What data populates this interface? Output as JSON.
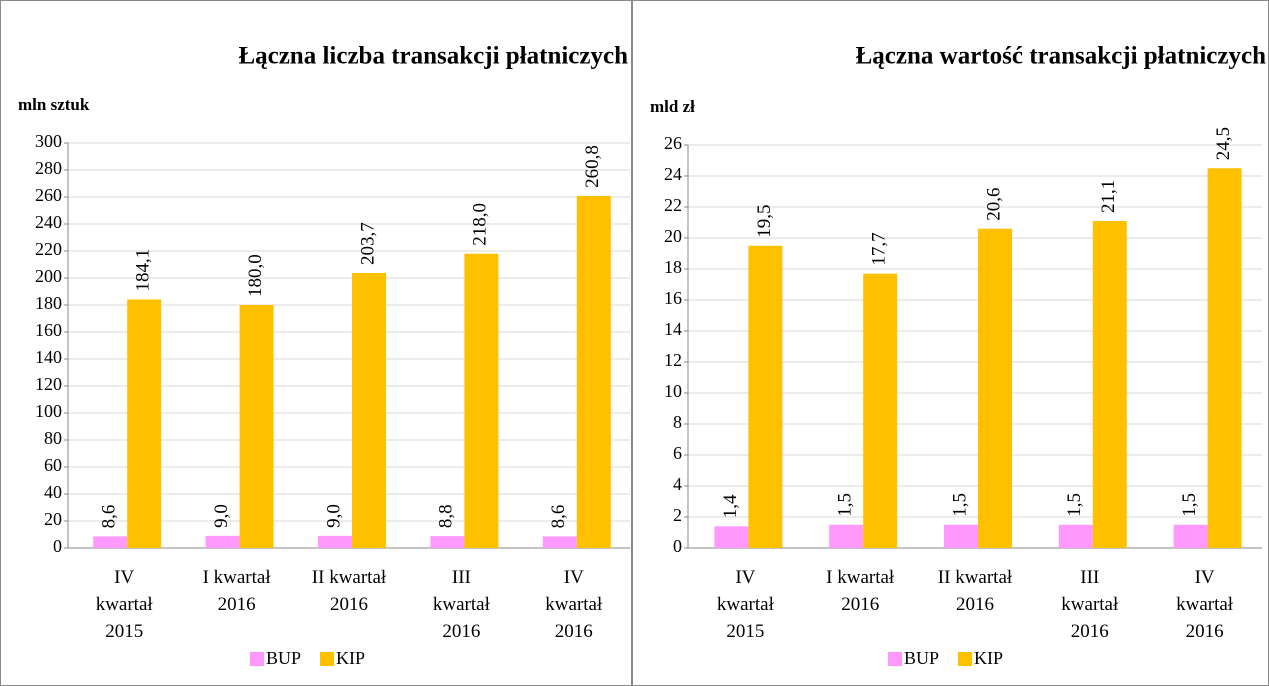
{
  "chart_data": [
    {
      "type": "bar",
      "title": "Łączna liczba transakcji płatniczych",
      "y_label": "mln sztuk",
      "categories": [
        "IV\nkwartał\n2015",
        "I kwartał\n2016",
        "II kwartał\n2016",
        "III\nkwartał\n2016",
        "IV\nkwartał\n2016"
      ],
      "series": [
        {
          "name": "BUP",
          "color": "#ff99ff",
          "values": [
            8.6,
            9.0,
            9.0,
            8.8,
            8.6
          ],
          "value_labels": [
            "8,6",
            "9,0",
            "9,0",
            "8,8",
            "8,6"
          ]
        },
        {
          "name": "KIP",
          "color": "#ffc000",
          "values": [
            184.1,
            180.0,
            203.7,
            218.0,
            260.8
          ],
          "value_labels": [
            "184,1",
            "180,0",
            "203,7",
            "218,0",
            "260,8"
          ]
        }
      ],
      "ylim": [
        0,
        300
      ],
      "yticks": [
        0,
        20,
        40,
        60,
        80,
        100,
        120,
        140,
        160,
        180,
        200,
        220,
        240,
        260,
        280,
        300
      ],
      "grid": true,
      "legend": "bottom"
    },
    {
      "type": "bar",
      "title": "Łączna wartość transakcji płatniczych",
      "y_label": "mld zł",
      "categories": [
        "IV\nkwartał\n2015",
        "I kwartał\n2016",
        "II kwartał\n2016",
        "III\nkwartał\n2016",
        "IV\nkwartał\n2016"
      ],
      "series": [
        {
          "name": "BUP",
          "color": "#ff99ff",
          "values": [
            1.4,
            1.5,
            1.5,
            1.5,
            1.5
          ],
          "value_labels": [
            "1,4",
            "1,5",
            "1,5",
            "1,5",
            "1,5"
          ]
        },
        {
          "name": "KIP",
          "color": "#ffc000",
          "values": [
            19.5,
            17.7,
            20.6,
            21.1,
            24.5
          ],
          "value_labels": [
            "19,5",
            "17,7",
            "20,6",
            "21,1",
            "24,5"
          ]
        }
      ],
      "ylim": [
        0,
        26
      ],
      "yticks": [
        0,
        2,
        4,
        6,
        8,
        10,
        12,
        14,
        16,
        18,
        20,
        22,
        24,
        26
      ],
      "grid": true,
      "legend": "bottom"
    }
  ]
}
